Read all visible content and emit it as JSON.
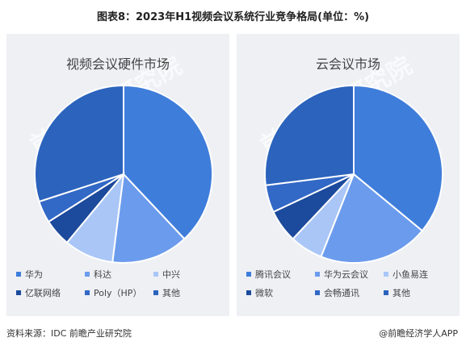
{
  "title": "图表8：2023年H1视频会议系统行业竞争格局(单位：%)",
  "watermark_text": "前瞻产业研究院",
  "source": "资料来源：IDC 前瞻产业研究院",
  "brand": "@前瞻经济学人APP",
  "chart_data": [
    {
      "type": "pie",
      "title": "视频会议硬件市场",
      "labels": [
        "华为",
        "科达",
        "中兴",
        "亿联网络",
        "Poly（HP）",
        "其他"
      ],
      "values": [
        38,
        14,
        9,
        5,
        4,
        30
      ],
      "colors": [
        "#3f7ddb",
        "#6b9bec",
        "#a9c6f7",
        "#1c4a9c",
        "#3268c6",
        "#2b63bd"
      ],
      "legend_position": "bottom"
    },
    {
      "type": "pie",
      "title": "云会议市场",
      "labels": [
        "腾讯会议",
        "华为云会议",
        "小鱼易连",
        "微软",
        "会畅通讯",
        "其他"
      ],
      "values": [
        36,
        20,
        6,
        6,
        5,
        27
      ],
      "colors": [
        "#3f7ddb",
        "#6b9bec",
        "#a9c6f7",
        "#1c4a9c",
        "#3268c6",
        "#2b63bd"
      ],
      "legend_position": "bottom"
    }
  ]
}
